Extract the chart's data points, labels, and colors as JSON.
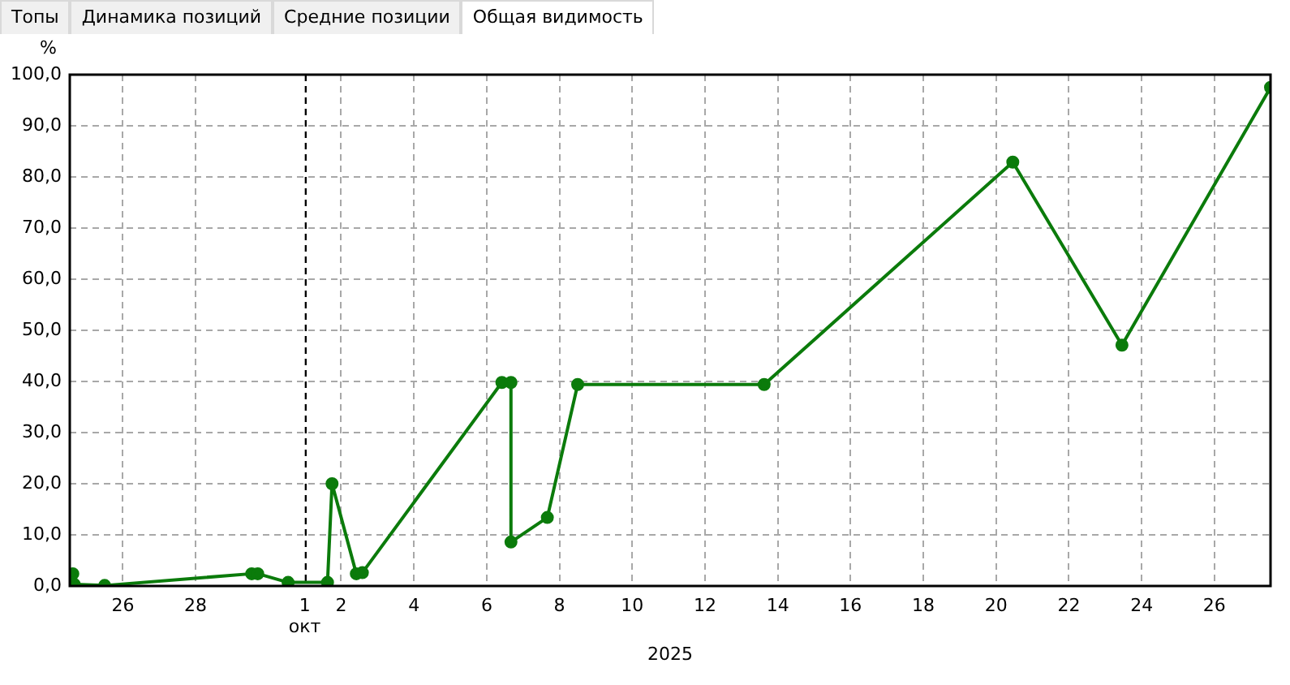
{
  "chart_data": {
    "type": "line",
    "xlabel": "2025",
    "ylabel": "%",
    "annotations": [
      "Топы",
      "Динамика позиций",
      "Средние позиции",
      "Общая видимость"
    ],
    "x": [
      "2025-09-24T14:00",
      "2025-09-24T15:00",
      "2025-09-24T16:00",
      "2025-09-25T12:00",
      "2025-09-29T13:00",
      "2025-09-29T17:00",
      "2025-09-30T13:00",
      "2025-10-01T15:00",
      "2025-10-01T18:00",
      "2025-10-02T10:00",
      "2025-10-02T14:00",
      "2025-10-06T10:00",
      "2025-10-06T16:00",
      "2025-10-06T16:00",
      "2025-10-07T16:00",
      "2025-10-08T12:00",
      "2025-10-13T15:00",
      "2025-10-20T11:00",
      "2025-10-23T11:00",
      "2025-10-27T13:00"
    ],
    "series": [
      {
        "color": "#0b7b0b",
        "values": [
          0.1,
          2.4,
          0.3,
          0.1,
          2.4,
          2.4,
          0.7,
          0.7,
          20,
          2.4,
          2.6,
          39.8,
          39.8,
          8.6,
          13.4,
          39.4,
          39.4,
          82.9,
          47.1,
          97.5
        ]
      }
    ],
    "xlim": [
      "2025-09-24T13:00",
      "2025-10-27T13:00"
    ],
    "xticks": [
      {
        "value": "2025-09-26",
        "label": "26"
      },
      {
        "value": "2025-09-28",
        "label": "28"
      },
      {
        "value": "2025-10-01",
        "label": "1\nокт"
      },
      {
        "value": "2025-10-02",
        "label": "2"
      },
      {
        "value": "2025-10-04",
        "label": "4"
      },
      {
        "value": "2025-10-06",
        "label": "6"
      },
      {
        "value": "2025-10-08",
        "label": "8"
      },
      {
        "value": "2025-10-10",
        "label": "10"
      },
      {
        "value": "2025-10-12",
        "label": "12"
      },
      {
        "value": "2025-10-14",
        "label": "14"
      },
      {
        "value": "2025-10-16",
        "label": "16"
      },
      {
        "value": "2025-10-18",
        "label": "18"
      },
      {
        "value": "2025-10-20",
        "label": "20"
      },
      {
        "value": "2025-10-22",
        "label": "22"
      },
      {
        "value": "2025-10-24",
        "label": "24"
      },
      {
        "value": "2025-10-26",
        "label": "26"
      }
    ],
    "ylim": [
      0,
      100
    ],
    "yticks": [
      {
        "value": 0,
        "label": "0,0"
      },
      {
        "value": 10,
        "label": "10,0"
      },
      {
        "value": 20,
        "label": "20,0"
      },
      {
        "value": 30,
        "label": "30,0"
      },
      {
        "value": 40,
        "label": "40,0"
      },
      {
        "value": 50,
        "label": "50,0"
      },
      {
        "value": 60,
        "label": "60,0"
      },
      {
        "value": 70,
        "label": "70,0"
      },
      {
        "value": 80,
        "label": "80,0"
      },
      {
        "value": 90,
        "label": "90,0"
      },
      {
        "value": 100,
        "label": "100,0"
      }
    ],
    "ref_lines": [
      {
        "axis": "x",
        "value": "2025-10-01",
        "color": "#000000",
        "line_style": "dashed"
      }
    ],
    "grid": true,
    "legend": false,
    "marker": "circle",
    "line_style": "solid"
  }
}
